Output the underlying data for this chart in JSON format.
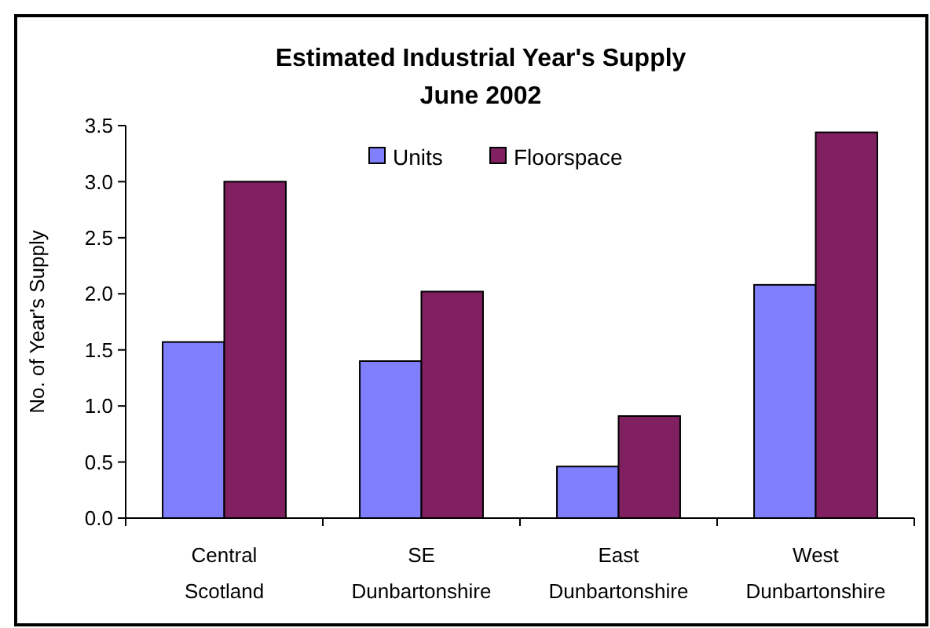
{
  "chart_data": {
    "type": "bar",
    "title": "Estimated Industrial Year's Supply",
    "subtitle": "June 2002",
    "ylabel": "No. of Year's Supply",
    "categories": [
      "Central Scotland",
      "SE Dunbartonshire",
      "East Dunbartonshire",
      "West Dunbartonshire"
    ],
    "series": [
      {
        "name": "Units",
        "color": "#8080ff",
        "values": [
          1.57,
          1.4,
          0.46,
          2.08
        ]
      },
      {
        "name": "Floorspace",
        "color": "#802060",
        "values": [
          3.0,
          2.02,
          0.91,
          3.44
        ]
      }
    ],
    "ylim": [
      0,
      3.5
    ],
    "yticks": [
      {
        "value": 0,
        "label": "0.0"
      },
      {
        "value": 0.5,
        "label": "0.5"
      },
      {
        "value": 1,
        "label": "1.0"
      },
      {
        "value": 1.5,
        "label": "1.5"
      },
      {
        "value": 2,
        "label": "2.0"
      },
      {
        "value": 2.5,
        "label": "2.5"
      },
      {
        "value": 3,
        "label": "3.0"
      },
      {
        "value": 3.5,
        "label": "3.5"
      }
    ],
    "legend": "top",
    "grid": false
  }
}
